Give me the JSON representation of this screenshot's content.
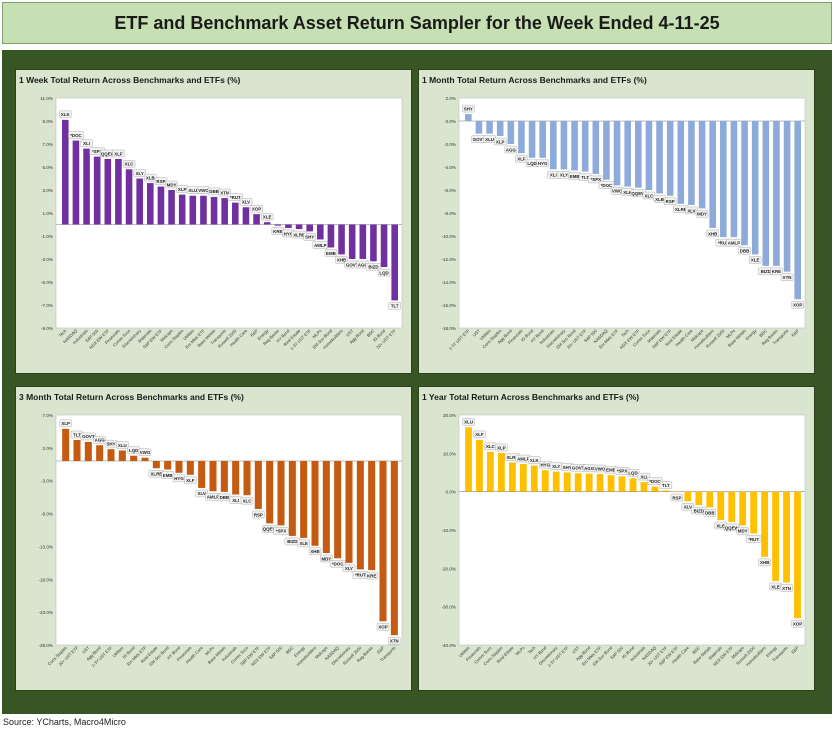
{
  "title": "ETF and Benchmark Asset Return Sampler for the Week Ended 4-11-25",
  "source": "Source: YCharts, Macro4Micro",
  "chart_data": [
    {
      "type": "bar",
      "title": "1 Week Total Return Across Benchmarks and ETFs (%)",
      "color": "#7030a0",
      "ylim": [
        -9.0,
        11.0
      ],
      "yticks": [
        11.0,
        9.0,
        7.0,
        5.0,
        3.0,
        1.0,
        -1.0,
        -3.0,
        -5.0,
        -7.0,
        -9.0
      ],
      "tick_labels": [
        "11.0%",
        "9.0%",
        "7.0%",
        "5.0%",
        "3.0%",
        "1.0%",
        "-1.0%",
        "-3.0%",
        "-5.0%",
        "-7.0%",
        "-9.0%"
      ],
      "labels": [
        "XLK",
        "*DOC",
        "XLI",
        "*SPX",
        "QQEW",
        "XLF",
        "XLC",
        "XLY",
        "XLB",
        "RSP",
        "MDY",
        "XLP",
        "XLU",
        "VWO",
        "DBB",
        "XTN",
        "*RUT",
        "XLV",
        "XOP",
        "XLE",
        "KRE",
        "HYG",
        "XLRE",
        "SHY",
        "AMLP",
        "EMB",
        "XHB",
        "GOVT",
        "AGG",
        "BIZD",
        "LQD",
        "TLT"
      ],
      "categories": [
        "Tech",
        "NASDAQ",
        "Industrials",
        "S&P 500",
        "NDX EW ETF",
        "Financials",
        "Comm Svcs",
        "Discretionary",
        "Materials",
        "S&P EW ETF",
        "Midcaps",
        "Cons Staples",
        "Utilities",
        "Em Mkts ETF",
        "Base Metals",
        "Transports",
        "Russell 2000",
        "Health Care",
        "E&P",
        "Energy",
        "Reg Banks",
        "HY Bond",
        "Real Estate",
        "1-3Y UST ETF",
        "MLPs",
        "EM Sov Bond",
        "Homebuilders",
        "UST",
        "Agg Bond",
        "BDC",
        "IG Bond",
        "20+ UST ETF"
      ],
      "values": [
        9.1,
        7.3,
        6.6,
        5.9,
        5.7,
        5.7,
        4.8,
        4.0,
        3.6,
        3.3,
        3.0,
        2.6,
        2.5,
        2.5,
        2.4,
        2.3,
        1.9,
        1.5,
        0.9,
        0.2,
        -0.1,
        -0.3,
        -0.4,
        -0.6,
        -1.3,
        -2.0,
        -2.6,
        -3.0,
        -3.0,
        -3.2,
        -3.7,
        -6.6
      ]
    },
    {
      "type": "bar",
      "title": "1 Month Total Return Across Benchmarks and ETFs (%)",
      "color": "#8eaadb",
      "ylim": [
        -18.0,
        2.0
      ],
      "yticks": [
        2.0,
        0.0,
        -2.0,
        -4.0,
        -6.0,
        -8.0,
        -10.0,
        -12.0,
        -14.0,
        -16.0,
        -18.0
      ],
      "tick_labels": [
        "2.0%",
        "0.0%",
        "-2.0%",
        "-4.0%",
        "-6.0%",
        "-8.0%",
        "-10.0%",
        "-12.0%",
        "-14.0%",
        "-16.0%",
        "-18.0%"
      ],
      "labels": [
        "SHY",
        "GOVT",
        "XLU",
        "XLP",
        "AGG",
        "XLF",
        "LQD",
        "HYG",
        "XLI",
        "XLY",
        "EMB",
        "TLT",
        "*SPX",
        "*DOC",
        "VWO",
        "XLK",
        "QQEW",
        "XLC",
        "XLB",
        "RSP",
        "XLRE",
        "XLV",
        "MDY",
        "XHB",
        "*RUT",
        "AMLP",
        "DBB",
        "XLE",
        "BIZD",
        "KRE",
        "XTN",
        "XOP"
      ],
      "categories": [
        "1-3Y UST ETF",
        "UST",
        "Utilities",
        "Cons Staples",
        "Agg Bond",
        "Financials",
        "IG Bond",
        "HY Bond",
        "Industrials",
        "Discretionary",
        "EM Sov Bond",
        "20+ UST ETF",
        "S&P 500",
        "NASDAQ",
        "Em Mkts ETF",
        "Tech",
        "NDX EW ETF",
        "Comm Svcs",
        "Materials",
        "S&P EW ETF",
        "Real Estate",
        "Health Care",
        "Midcaps",
        "Homebuilders",
        "Russell 2000",
        "MLPs",
        "Base Metals",
        "Energy",
        "BDC",
        "Reg Banks",
        "Transports",
        "E&P"
      ],
      "values": [
        0.6,
        -1.1,
        -1.1,
        -1.3,
        -2.0,
        -2.8,
        -3.2,
        -3.2,
        -4.2,
        -4.2,
        -4.3,
        -4.4,
        -4.6,
        -5.1,
        -5.6,
        -5.7,
        -5.8,
        -6.0,
        -6.3,
        -6.5,
        -7.2,
        -7.3,
        -7.6,
        -9.3,
        -10.1,
        -10.1,
        -10.8,
        -11.6,
        -12.6,
        -12.6,
        -13.1,
        -15.5
      ]
    },
    {
      "type": "bar",
      "title": "3 Month Total Return Across Benchmarks and ETFs (%)",
      "color": "#c55a11",
      "ylim": [
        -28.0,
        7.0
      ],
      "yticks": [
        7.0,
        2.0,
        -3.0,
        -8.0,
        -13.0,
        -18.0,
        -23.0,
        -28.0
      ],
      "tick_labels": [
        "7.0%",
        "2.0%",
        "-3.0%",
        "-8.0%",
        "-13.0%",
        "-18.0%",
        "-23.0%",
        "-28.0%"
      ],
      "labels": [
        "XLP",
        "TLT",
        "GOVT",
        "AGG",
        "SHY",
        "XLU",
        "LQD",
        "VWO",
        "XLRE",
        "EMB",
        "HYG",
        "XLF",
        "XLV",
        "AMLP",
        "DBB",
        "XLI",
        "XLC",
        "RSP",
        "QQEW",
        "*SPX",
        "BIZD",
        "XLE",
        "XHB",
        "MDY",
        "*DOC",
        "XLY",
        "*RUT",
        "KRE",
        "XOP",
        "XTN"
      ],
      "categories": [
        "Cons Staples",
        "20+ UST ETF",
        "UST",
        "Agg Bond",
        "1-3Y UST ETF",
        "Utilities",
        "IG Bond",
        "Em Mkts ETF",
        "Real Estate",
        "EM Sov Bond",
        "HY Bond",
        "Financials",
        "Health Care",
        "MLPs",
        "Base Metals",
        "Industrials",
        "Comm Svcs",
        "S&P EW ETF",
        "NDX EW ETF",
        "S&P 500",
        "BDC",
        "Energy",
        "Homebuilders",
        "Midcaps",
        "NASDAQ",
        "Discretionary",
        "Russell 2000",
        "Reg Banks",
        "E&P",
        "Transports"
      ],
      "values": [
        4.9,
        3.2,
        2.9,
        2.4,
        1.8,
        1.6,
        0.8,
        0.5,
        -1.1,
        -1.3,
        -1.8,
        -2.1,
        -4.1,
        -4.6,
        -4.7,
        -5.1,
        -5.2,
        -7.3,
        -9.5,
        -9.8,
        -11.4,
        -11.7,
        -12.9,
        -14.0,
        -14.8,
        -15.5,
        -16.5,
        -16.6,
        -24.4,
        -26.5
      ]
    },
    {
      "type": "bar",
      "title": "1 Year Total Return Across Benchmarks and ETFs (%)",
      "color": "#ffc000",
      "ylim": [
        -40.0,
        20.0
      ],
      "yticks": [
        20.0,
        10.0,
        0.0,
        -10.0,
        -20.0,
        -30.0,
        -40.0
      ],
      "tick_labels": [
        "20.0%",
        "10.0%",
        "0.0%",
        "-10.0%",
        "-20.0%",
        "-30.0%",
        "-40.0%"
      ],
      "labels": [
        "XLU",
        "XLF",
        "XLC",
        "XLP",
        "XLRE",
        "AMLP",
        "XLK",
        "HYG",
        "XLY",
        "SHY",
        "GOVT",
        "AGG",
        "VWO",
        "EMB",
        "*SPX",
        "LQD",
        "XLI",
        "*DOC",
        "TLT",
        "RSP",
        "XLV",
        "BIZD",
        "DBB",
        "XLB",
        "QQEW",
        "MDY",
        "*RUT",
        "XHB",
        "XLE",
        "XTN",
        "XOP"
      ],
      "categories": [
        "Utilities",
        "Financials",
        "Comm Svcs",
        "Cons Staples",
        "Real Estate",
        "MLPs",
        "Tech",
        "HY Bond",
        "Discretionary",
        "1-3Y UST ETF",
        "UST",
        "Agg Bond",
        "Em Mkts ETF",
        "EM Sov Bond",
        "S&P 500",
        "IG Bond",
        "Industrials",
        "NASDAQ",
        "20+ UST ETF",
        "S&P EW ETF",
        "Health Care",
        "BDC",
        "Base Metals",
        "Materials",
        "NDX EW ETF",
        "Midcaps",
        "Russell 2000",
        "Homebuilders",
        "Energy",
        "Transports",
        "E&P"
      ],
      "values": [
        16.8,
        13.5,
        10.4,
        10.1,
        7.6,
        7.2,
        6.8,
        5.6,
        5.2,
        5.0,
        4.8,
        4.7,
        4.6,
        4.3,
        4.0,
        3.5,
        2.5,
        1.3,
        0.3,
        -0.1,
        -2.5,
        -3.5,
        -4.1,
        -7.4,
        -7.9,
        -8.8,
        -10.9,
        -17.0,
        -23.3,
        -23.7,
        -33.0
      ]
    }
  ]
}
